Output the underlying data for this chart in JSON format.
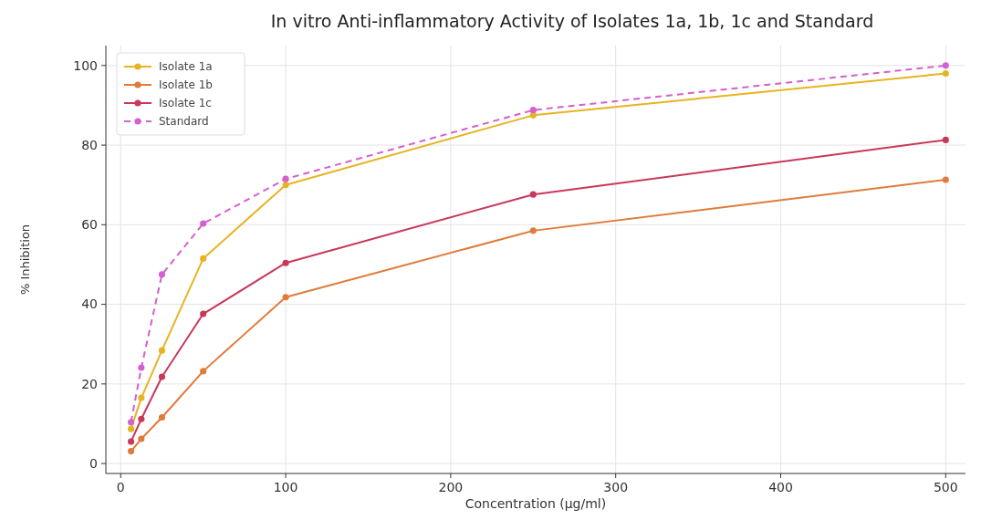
{
  "chart_data": {
    "type": "line",
    "title": "In vitro Anti-inflammatory Activity of Isolates 1a, 1b, 1c and Standard",
    "xlabel": "Concentration (µg/ml)",
    "ylabel": "% Inhibition",
    "x": [
      6.25,
      12.5,
      25,
      50,
      100,
      250,
      500
    ],
    "series": [
      {
        "name": "Isolate 1a",
        "color": "#e6b422",
        "values": [
          8.7,
          16.5,
          28.4,
          51.5,
          70,
          87.5,
          98
        ]
      },
      {
        "name": "Isolate 1b",
        "color": "#e07b39",
        "values": [
          3.1,
          6.2,
          11.6,
          23.2,
          41.8,
          58.5,
          71.3
        ]
      },
      {
        "name": "Isolate 1c",
        "color": "#c8385a",
        "values": [
          5.5,
          11.2,
          21.8,
          37.6,
          50.4,
          67.6,
          81.3
        ]
      },
      {
        "name": "Standard",
        "color": "#d45fcf",
        "values": [
          10.4,
          24.1,
          47.5,
          60.3,
          71.5,
          88.8,
          100
        ],
        "line_style": "dashed"
      }
    ],
    "xlim": [
      -9,
      512
    ],
    "ylim": [
      -2.5,
      105
    ],
    "xticks": [
      0,
      100,
      200,
      300,
      400,
      500
    ],
    "yticks": [
      0,
      20,
      40,
      60,
      80,
      100
    ],
    "grid": true,
    "legend": "top left",
    "marker": "circle",
    "line_style": "solid"
  }
}
